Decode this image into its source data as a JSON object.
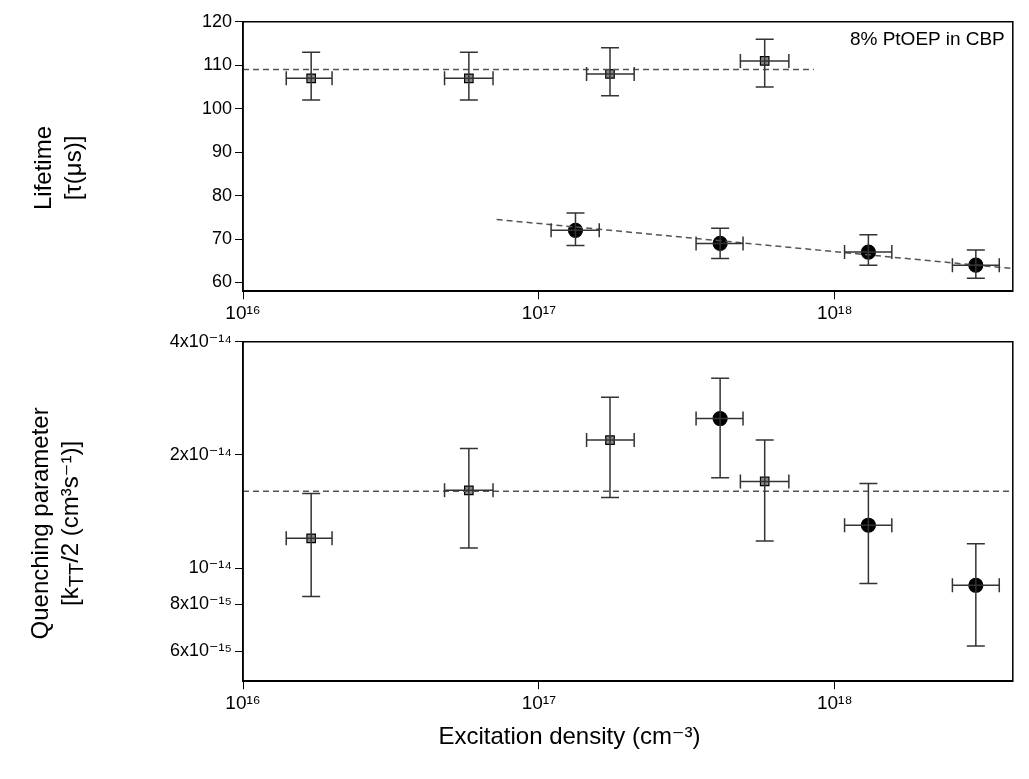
{
  "chart_data": [
    {
      "type": "scatter",
      "ylabel": "Lifetime\n[τ(μs)]",
      "log": "x",
      "grid": false,
      "xlim": [
        1e+16,
        4e+18
      ],
      "xticks": [
        {
          "value": 1e+16,
          "label": "10¹⁶"
        },
        {
          "value": 1e+17,
          "label": "10¹⁷"
        },
        {
          "value": 1e+18,
          "label": "10¹⁸"
        }
      ],
      "ylim": [
        58,
        120
      ],
      "yticks": [
        60,
        70,
        80,
        90,
        100,
        110,
        120
      ],
      "annotations": [
        "8% PtOEP in CBP"
      ],
      "series": [
        {
          "marker": "square",
          "color": "#888888",
          "x": [
            1.7e+16,
            5.8e+16,
            1.74e+17,
            5.8e+17
          ],
          "values": [
            107,
            107,
            108,
            111
          ],
          "errors": [
            [
              102,
              113
            ],
            [
              102,
              113
            ],
            [
              103,
              114
            ],
            [
              105,
              116
            ]
          ],
          "xerrors": [
            [
              1.4e+16,
              2e+16
            ],
            [
              4.8e+16,
              7e+16
            ],
            [
              1.45e+17,
              2.1e+17
            ],
            [
              4.8e+17,
              7e+17
            ]
          ]
        },
        {
          "marker": "circle",
          "color": "#000000",
          "x": [
            1.33e+17,
            4.1e+17,
            1.3e+18,
            3e+18
          ],
          "values": [
            72,
            69,
            67,
            64
          ],
          "errors": [
            [
              68.5,
              76
            ],
            [
              65.5,
              72.5
            ],
            [
              64,
              71
            ],
            [
              61,
              67.5
            ]
          ],
          "xerrors": [
            [
              1.1e+17,
              1.6e+17
            ],
            [
              3.4e+17,
              4.9e+17
            ],
            [
              1.08e+18,
              1.56e+18
            ],
            [
              2.5e+18,
              3.6e+18
            ]
          ]
        },
        {
          "type": "line",
          "marker": "none",
          "line_style": "dashed",
          "color": "#555555",
          "x": [
            1e+16,
            8.5e+17
          ],
          "values": [
            109,
            109
          ]
        },
        {
          "type": "line",
          "marker": "none",
          "line_style": "dashed",
          "color": "#555555",
          "x": [
            7.2e+16,
            4e+18
          ],
          "values": [
            74.5,
            63.2
          ]
        }
      ]
    },
    {
      "type": "scatter",
      "ylabel": "Quenching parameter\n[k$_{TT}$/2 (cm³s⁻¹)]",
      "xlabel": "Excitation density (cm⁻³)",
      "log": "xy",
      "grid": false,
      "xlim": [
        1e+16,
        4e+18
      ],
      "xticks": [
        {
          "value": 1e+16,
          "label": "10¹⁶"
        },
        {
          "value": 1e+17,
          "label": "10¹⁷"
        },
        {
          "value": 1e+18,
          "label": "10¹⁸"
        }
      ],
      "ylim": [
        5e-15,
        4e-14
      ],
      "yticks": [
        {
          "value": 6e-15,
          "label": "6x10⁻¹⁵"
        },
        {
          "value": 8e-15,
          "label": "8x10⁻¹⁵"
        },
        {
          "value": 1e-14,
          "label": "10⁻¹⁴"
        },
        {
          "value": 2e-14,
          "label": "2x10⁻¹⁴"
        },
        {
          "value": 4e-14,
          "label": "4x10⁻¹⁴"
        }
      ],
      "series": [
        {
          "marker": "square",
          "color": "#888888",
          "x": [
            1.7e+16,
            5.8e+16,
            1.74e+17,
            5.8e+17
          ],
          "values": [
            1.2e-14,
            1.61e-14,
            2.19e-14,
            1.7e-14
          ],
          "errors": [
            [
              8.4e-15,
              1.58e-14
            ],
            [
              1.13e-14,
              2.08e-14
            ],
            [
              1.54e-14,
              2.85e-14
            ],
            [
              1.18e-14,
              2.19e-14
            ]
          ],
          "xerrors": [
            [
              1.4e+16,
              2e+16
            ],
            [
              4.8e+16,
              7e+16
            ],
            [
              1.45e+17,
              2.1e+17
            ],
            [
              4.8e+17,
              7e+17
            ]
          ]
        },
        {
          "marker": "circle",
          "color": "#000000",
          "x": [
            4.1e+17,
            1.3e+18,
            3e+18
          ],
          "values": [
            2.5e-14,
            1.3e-14,
            9e-15
          ],
          "errors": [
            [
              1.74e-14,
              3.2e-14
            ],
            [
              9.1e-15,
              1.68e-14
            ],
            [
              6.2e-15,
              1.16e-14
            ]
          ],
          "xerrors": [
            [
              3.4e+17,
              4.9e+17
            ],
            [
              1.08e+18,
              1.56e+18
            ],
            [
              2.5e+18,
              3.6e+18
            ]
          ]
        },
        {
          "type": "line",
          "marker": "none",
          "line_style": "dashed",
          "color": "#555555",
          "x": [
            1e+16,
            4e+18
          ],
          "values": [
            1.6e-14,
            1.6e-14
          ]
        }
      ]
    }
  ]
}
